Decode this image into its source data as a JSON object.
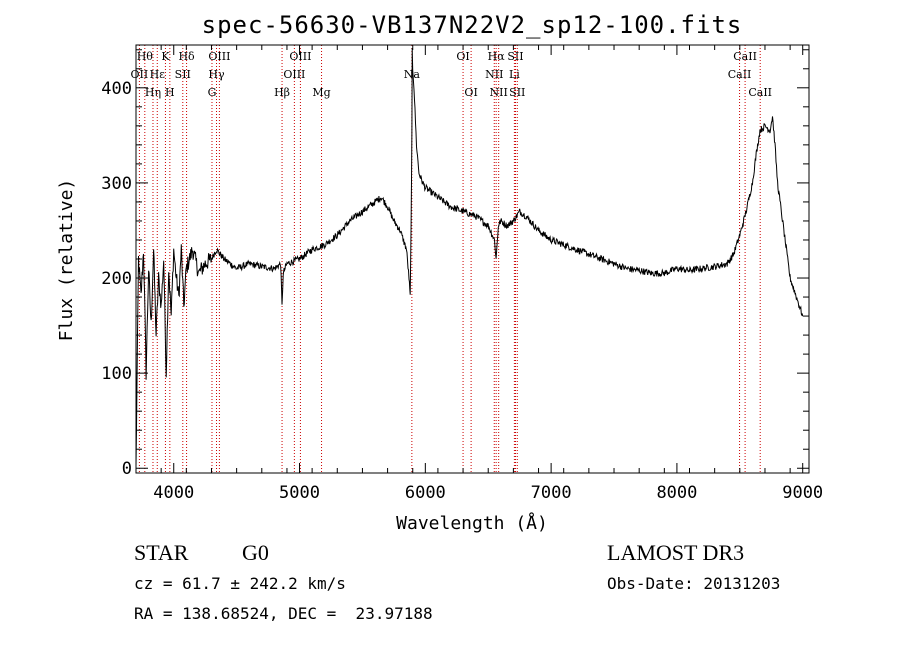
{
  "chart_data": {
    "type": "line",
    "title": "spec-56630-VB137N22V2_sp12-100.fits",
    "xlabel": "Wavelength (Å)",
    "ylabel": "Flux (relative)",
    "xlim": [
      3700,
      9050
    ],
    "ylim": [
      -5,
      445
    ],
    "x_ticks": [
      4000,
      5000,
      6000,
      7000,
      8000,
      9000
    ],
    "y_ticks": [
      0,
      100,
      200,
      300,
      400
    ],
    "grid": false,
    "line_color": "#000000",
    "marker_color": "#cc0000",
    "series": [
      {
        "x": [
          3700,
          3720,
          3740,
          3760,
          3780,
          3800,
          3820,
          3840,
          3860,
          3880,
          3900,
          3920,
          3940,
          3960,
          3980,
          4000,
          4020,
          4040,
          4060,
          4080,
          4100,
          4150,
          4200,
          4250,
          4300,
          4340,
          4400,
          4500,
          4600,
          4700,
          4800,
          4850,
          4861,
          4870,
          4900,
          5000,
          5100,
          5200,
          5300,
          5400,
          5500,
          5600,
          5650,
          5700,
          5750,
          5800,
          5850,
          5870,
          5880,
          5890,
          5893,
          5896,
          5900,
          5910,
          5930,
          5950,
          5980,
          6000,
          6050,
          6100,
          6200,
          6300,
          6400,
          6500,
          6550,
          6563,
          6580,
          6600,
          6650,
          6700,
          6750,
          6800,
          6900,
          7000,
          7100,
          7200,
          7300,
          7400,
          7500,
          7600,
          7700,
          7800,
          7900,
          8000,
          8100,
          8200,
          8300,
          8400,
          8450,
          8500,
          8550,
          8600,
          8630,
          8660,
          8700,
          8740,
          8760,
          8780,
          8800,
          8850,
          8900,
          8950,
          9000
        ],
        "y": [
          0,
          220,
          180,
          230,
          100,
          210,
          150,
          230,
          140,
          200,
          170,
          220,
          100,
          210,
          160,
          230,
          200,
          180,
          230,
          170,
          210,
          230,
          205,
          215,
          220,
          230,
          220,
          210,
          215,
          212,
          210,
          215,
          170,
          205,
          215,
          220,
          230,
          235,
          245,
          260,
          270,
          280,
          285,
          275,
          260,
          250,
          230,
          200,
          180,
          300,
          350,
          440,
          420,
          400,
          340,
          310,
          300,
          295,
          290,
          285,
          275,
          270,
          265,
          255,
          240,
          220,
          255,
          260,
          255,
          260,
          270,
          265,
          250,
          240,
          235,
          230,
          225,
          220,
          215,
          210,
          208,
          205,
          205,
          210,
          208,
          210,
          212,
          215,
          225,
          245,
          270,
          300,
          330,
          355,
          360,
          355,
          370,
          340,
          300,
          250,
          200,
          180,
          160
        ]
      }
    ],
    "line_markers": [
      {
        "wl": 3727,
        "text": "OII",
        "row": 1
      },
      {
        "wl": 3770,
        "text": "Hθ",
        "row": 0
      },
      {
        "wl": 3835,
        "text": "Hη",
        "row": 2
      },
      {
        "wl": 3869,
        "text": "Hε",
        "row": 1
      },
      {
        "wl": 3934,
        "text": "K",
        "row": 0
      },
      {
        "wl": 3969,
        "text": "H",
        "row": 2
      },
      {
        "wl": 4072,
        "text": "SII",
        "row": 1
      },
      {
        "wl": 4102,
        "text": "Hδ",
        "row": 0
      },
      {
        "wl": 4304,
        "text": "G",
        "row": 2
      },
      {
        "wl": 4340,
        "text": "Hγ",
        "row": 1
      },
      {
        "wl": 4363,
        "text": "OIII",
        "row": 0
      },
      {
        "wl": 4861,
        "text": "Hβ",
        "row": 2
      },
      {
        "wl": 4959,
        "text": "OIII",
        "row": 1
      },
      {
        "wl": 5007,
        "text": "OIII",
        "row": 0
      },
      {
        "wl": 5175,
        "text": "Mg",
        "row": 2
      },
      {
        "wl": 5893,
        "text": "Na",
        "row": 1
      },
      {
        "wl": 6300,
        "text": "OI",
        "row": 0
      },
      {
        "wl": 6364,
        "text": "OI",
        "row": 2
      },
      {
        "wl": 6548,
        "text": "NII",
        "row": 1
      },
      {
        "wl": 6563,
        "text": "Hα",
        "row": 0
      },
      {
        "wl": 6583,
        "text": "NII",
        "row": 2
      },
      {
        "wl": 6708,
        "text": "Li",
        "row": 1
      },
      {
        "wl": 6717,
        "text": "SII",
        "row": 0
      },
      {
        "wl": 6731,
        "text": "SII",
        "row": 2
      },
      {
        "wl": 8498,
        "text": "CaII",
        "row": 1
      },
      {
        "wl": 8542,
        "text": "CaII",
        "row": 0
      },
      {
        "wl": 8662,
        "text": "CaII",
        "row": 2
      }
    ]
  },
  "info": {
    "class": "STAR",
    "subclass": "G0",
    "survey": "LAMOST DR3",
    "cz": "cz = 61.7 ± 242.2 km/s",
    "obs_date": "Obs-Date: 20131203",
    "coords": "RA = 138.68524, DEC =  23.97188"
  }
}
